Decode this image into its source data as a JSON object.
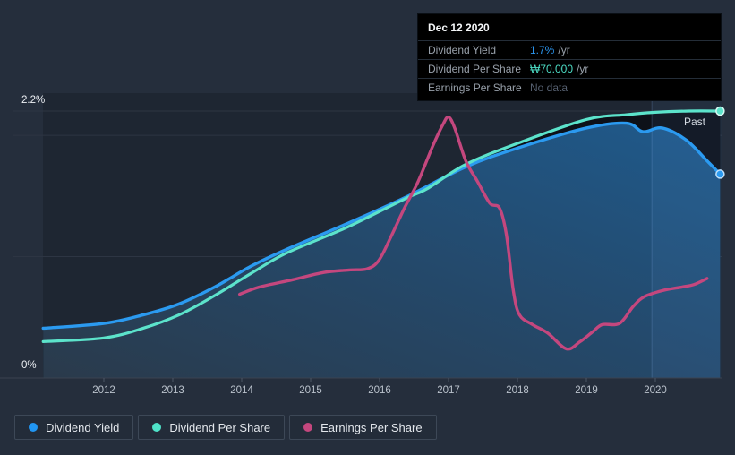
{
  "tooltip": {
    "date": "Dec 12 2020",
    "rows": [
      {
        "label": "Dividend Yield",
        "value": "1.7%",
        "suffix": "/yr",
        "color": "#2b96f0"
      },
      {
        "label": "Dividend Per Share",
        "value": "₩70.000",
        "suffix": "/yr",
        "color": "#4cdcc5"
      },
      {
        "label": "Earnings Per Share",
        "value": "No data",
        "suffix": "",
        "color": "#566070"
      }
    ]
  },
  "legend": {
    "items": [
      {
        "label": "Dividend Yield",
        "color": "#2196f3"
      },
      {
        "label": "Dividend Per Share",
        "color": "#4fe3c9"
      },
      {
        "label": "Earnings Per Share",
        "color": "#c4477e"
      }
    ]
  },
  "chart_data": {
    "type": "line",
    "past_label": "Past",
    "x_axis": {
      "ticks": [
        2012,
        2013,
        2014,
        2015,
        2016,
        2017,
        2018,
        2019,
        2020
      ],
      "tick_labels": [
        "2012",
        "2013",
        "2014",
        "2015",
        "2016",
        "2017",
        "2018",
        "2019",
        "2020"
      ],
      "range_years": [
        2011.12,
        2020.96
      ]
    },
    "y_axis": {
      "unit": "%",
      "labels": [
        "2.2%",
        "0%"
      ],
      "labeled_values": [
        2.2,
        0
      ],
      "gridline_values": [
        2.2,
        2.0,
        1.0
      ],
      "range": [
        0,
        2.35
      ]
    },
    "highlight_band": {
      "from_year": 2019.95,
      "to_year": 2020.96
    },
    "series": [
      {
        "name": "Dividend Yield",
        "color": "#2b9af0",
        "end_dot": true,
        "fill": "gradient",
        "points": [
          [
            2011.12,
            0.41
          ],
          [
            2012.0,
            0.45
          ],
          [
            2012.57,
            0.52
          ],
          [
            2013.09,
            0.61
          ],
          [
            2013.61,
            0.75
          ],
          [
            2014.13,
            0.92
          ],
          [
            2014.65,
            1.06
          ],
          [
            2015.52,
            1.27
          ],
          [
            2016.38,
            1.49
          ],
          [
            2017.25,
            1.74
          ],
          [
            2018.03,
            1.9
          ],
          [
            2019.0,
            2.06
          ],
          [
            2019.58,
            2.1
          ],
          [
            2019.82,
            2.03
          ],
          [
            2020.1,
            2.06
          ],
          [
            2020.45,
            1.96
          ],
          [
            2020.75,
            1.79
          ],
          [
            2020.94,
            1.68
          ]
        ]
      },
      {
        "name": "Dividend Per Share",
        "color": "#5ce3cb",
        "end_dot": true,
        "fill": "dark",
        "points": [
          [
            2011.12,
            0.3
          ],
          [
            2012.0,
            0.33
          ],
          [
            2012.57,
            0.41
          ],
          [
            2013.09,
            0.52
          ],
          [
            2013.61,
            0.68
          ],
          [
            2014.13,
            0.86
          ],
          [
            2014.65,
            1.03
          ],
          [
            2015.52,
            1.24
          ],
          [
            2016.38,
            1.48
          ],
          [
            2016.69,
            1.56
          ],
          [
            2017.25,
            1.76
          ],
          [
            2018.03,
            1.94
          ],
          [
            2019.0,
            2.13
          ],
          [
            2019.58,
            2.17
          ],
          [
            2020.0,
            2.19
          ],
          [
            2020.49,
            2.2
          ],
          [
            2020.94,
            2.2
          ]
        ]
      },
      {
        "name": "Earnings Per Share",
        "color": "#c4477e",
        "end_dot": false,
        "fill": "none",
        "points": [
          [
            2013.97,
            0.69
          ],
          [
            2014.26,
            0.75
          ],
          [
            2014.74,
            0.81
          ],
          [
            2015.19,
            0.87
          ],
          [
            2015.56,
            0.89
          ],
          [
            2015.82,
            0.9
          ],
          [
            2015.99,
            0.97
          ],
          [
            2016.17,
            1.17
          ],
          [
            2016.36,
            1.4
          ],
          [
            2016.56,
            1.62
          ],
          [
            2016.77,
            1.91
          ],
          [
            2016.92,
            2.09
          ],
          [
            2017.0,
            2.15
          ],
          [
            2017.09,
            2.06
          ],
          [
            2017.25,
            1.79
          ],
          [
            2017.42,
            1.62
          ],
          [
            2017.6,
            1.44
          ],
          [
            2017.74,
            1.4
          ],
          [
            2017.84,
            1.18
          ],
          [
            2017.94,
            0.72
          ],
          [
            2018.03,
            0.52
          ],
          [
            2018.22,
            0.44
          ],
          [
            2018.44,
            0.37
          ],
          [
            2018.71,
            0.24
          ],
          [
            2018.91,
            0.3
          ],
          [
            2019.09,
            0.38
          ],
          [
            2019.23,
            0.44
          ],
          [
            2019.48,
            0.45
          ],
          [
            2019.68,
            0.59
          ],
          [
            2019.84,
            0.67
          ],
          [
            2020.1,
            0.72
          ],
          [
            2020.39,
            0.75
          ],
          [
            2020.56,
            0.77
          ],
          [
            2020.75,
            0.82
          ]
        ]
      }
    ]
  }
}
